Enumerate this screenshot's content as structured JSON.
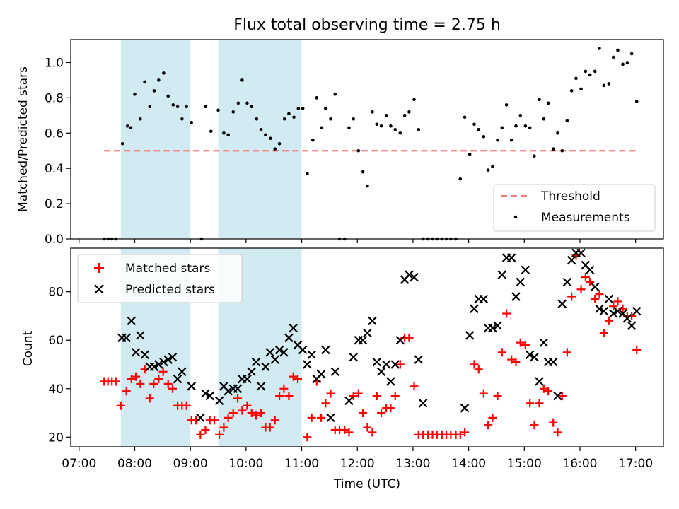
{
  "figure": {
    "title": "Flux total observing time = 2.75 h",
    "xlabel": "Time (UTC)",
    "x_ticks": [
      "07:00",
      "08:00",
      "09:00",
      "10:00",
      "11:00",
      "12:00",
      "13:00",
      "14:00",
      "15:00",
      "16:00",
      "17:00"
    ]
  },
  "chart_data": [
    {
      "type": "scatter",
      "title": "Flux total observing time = 2.75 h",
      "xlabel": "",
      "ylabel": "Matched/Predicted stars",
      "x_unit": "hours UTC",
      "xlim": [
        6.85,
        17.5
      ],
      "ylim": [
        0.0,
        1.13
      ],
      "y_ticks": [
        0.0,
        0.2,
        0.4,
        0.6,
        0.8,
        1.0
      ],
      "legend_position": "lower-right",
      "shaded_intervals": [
        [
          7.75,
          9.0
        ],
        [
          9.5,
          11.0
        ]
      ],
      "shade_color": "#add8e6",
      "threshold": {
        "name": "Threshold",
        "value": 0.5,
        "x_range": [
          7.45,
          17.0
        ],
        "color": "#f08080"
      },
      "series": [
        {
          "name": "Measurements",
          "color": "#000000",
          "x": [
            7.45,
            7.52,
            7.59,
            7.66,
            7.78,
            7.87,
            7.93,
            8.0,
            8.1,
            8.18,
            8.27,
            8.35,
            8.43,
            8.52,
            8.6,
            8.69,
            8.77,
            8.85,
            8.93,
            9.02,
            9.2,
            9.27,
            9.37,
            9.5,
            9.6,
            9.68,
            9.77,
            9.86,
            9.93,
            10.02,
            10.1,
            10.19,
            10.27,
            10.35,
            10.44,
            10.52,
            10.6,
            10.69,
            10.77,
            10.86,
            10.94,
            11.02,
            11.1,
            11.2,
            11.27,
            11.36,
            11.43,
            11.52,
            11.6,
            11.68,
            11.77,
            11.85,
            11.93,
            12.02,
            12.1,
            12.18,
            12.27,
            12.35,
            12.43,
            12.52,
            12.6,
            12.68,
            12.77,
            12.85,
            12.93,
            13.02,
            13.1,
            13.18,
            13.27,
            13.35,
            13.43,
            13.52,
            13.6,
            13.68,
            13.77,
            13.85,
            13.93,
            14.02,
            14.1,
            14.18,
            14.27,
            14.35,
            14.43,
            14.52,
            14.6,
            14.68,
            14.77,
            14.85,
            14.93,
            15.02,
            15.1,
            15.18,
            15.27,
            15.35,
            15.43,
            15.52,
            15.6,
            15.68,
            15.77,
            15.85,
            15.93,
            16.02,
            16.1,
            16.18,
            16.27,
            16.35,
            16.43,
            16.52,
            16.6,
            16.68,
            16.77,
            16.85,
            16.93,
            17.02
          ],
          "y": [
            0.0,
            0.0,
            0.0,
            0.0,
            0.54,
            0.64,
            0.63,
            0.82,
            0.68,
            0.89,
            0.75,
            0.84,
            0.9,
            0.94,
            0.81,
            0.76,
            0.75,
            0.68,
            0.75,
            0.66,
            0.0,
            0.75,
            0.61,
            0.73,
            0.6,
            0.59,
            0.72,
            0.77,
            0.9,
            0.77,
            0.75,
            0.68,
            0.62,
            0.59,
            0.57,
            0.51,
            0.54,
            0.68,
            0.71,
            0.69,
            0.74,
            0.74,
            0.37,
            0.56,
            0.8,
            0.63,
            0.74,
            0.68,
            0.82,
            0.0,
            0.0,
            0.63,
            0.68,
            0.5,
            0.38,
            0.3,
            0.72,
            0.65,
            0.64,
            0.7,
            0.64,
            0.62,
            0.6,
            0.7,
            0.72,
            0.79,
            0.62,
            0.0,
            0.0,
            0.0,
            0.0,
            0.0,
            0.0,
            0.0,
            0.0,
            0.34,
            0.69,
            0.48,
            0.65,
            0.62,
            0.58,
            0.39,
            0.41,
            0.56,
            0.63,
            0.76,
            0.56,
            0.64,
            0.7,
            0.64,
            0.63,
            0.47,
            0.79,
            0.68,
            0.77,
            0.51,
            0.6,
            0.5,
            0.67,
            0.84,
            0.91,
            0.85,
            0.95,
            0.93,
            0.95,
            1.08,
            0.87,
            0.88,
            1.03,
            1.07,
            0.99,
            1.0,
            1.05,
            0.78
          ]
        }
      ]
    },
    {
      "type": "scatter",
      "title": "",
      "xlabel": "Time (UTC)",
      "ylabel": "Count",
      "x_unit": "hours UTC",
      "xlim": [
        6.85,
        17.5
      ],
      "ylim": [
        16,
        98
      ],
      "y_ticks": [
        20,
        40,
        60,
        80
      ],
      "legend_position": "upper-left",
      "shaded_intervals": [
        [
          7.75,
          9.0
        ],
        [
          9.5,
          11.0
        ]
      ],
      "shade_color": "#add8e6",
      "series": [
        {
          "name": "Matched stars",
          "marker": "+",
          "color": "#ff0000",
          "x": [
            7.45,
            7.52,
            7.59,
            7.66,
            7.75,
            7.85,
            7.94,
            8.02,
            8.1,
            8.18,
            8.27,
            8.34,
            8.43,
            8.51,
            8.6,
            8.68,
            8.77,
            8.85,
            8.93,
            9.02,
            9.1,
            9.18,
            9.27,
            9.35,
            9.43,
            9.52,
            9.6,
            9.68,
            9.77,
            9.85,
            9.93,
            10.02,
            10.1,
            10.18,
            10.27,
            10.35,
            10.43,
            10.52,
            10.6,
            10.68,
            10.77,
            10.85,
            10.93,
            11.1,
            11.18,
            11.27,
            11.35,
            11.43,
            11.52,
            11.6,
            11.68,
            11.77,
            11.85,
            11.93,
            12.02,
            12.1,
            12.18,
            12.27,
            12.35,
            12.43,
            12.52,
            12.6,
            12.68,
            12.77,
            12.85,
            12.93,
            13.02,
            13.1,
            13.18,
            13.27,
            13.35,
            13.43,
            13.52,
            13.6,
            13.68,
            13.77,
            13.85,
            13.93,
            14.1,
            14.18,
            14.27,
            14.35,
            14.43,
            14.52,
            14.6,
            14.68,
            14.77,
            14.85,
            14.93,
            15.02,
            15.1,
            15.18,
            15.27,
            15.35,
            15.43,
            15.52,
            15.6,
            15.68,
            15.77,
            15.85,
            15.93,
            16.02,
            16.1,
            16.18,
            16.27,
            16.35,
            16.43,
            16.52,
            16.6,
            16.68,
            16.77,
            16.85,
            16.93,
            17.02
          ],
          "y": [
            43,
            43,
            43,
            43,
            33,
            39,
            44,
            45,
            42,
            48,
            36,
            42,
            44,
            47,
            42,
            40,
            33,
            33,
            33,
            27,
            27,
            21,
            23,
            27,
            27,
            21,
            24,
            28,
            30,
            36,
            31,
            33,
            30,
            29,
            30,
            24,
            24,
            27,
            37,
            40,
            37,
            45,
            44,
            20,
            28,
            43,
            28,
            34,
            38,
            23,
            23,
            23,
            22,
            37,
            38,
            30,
            24,
            22,
            37,
            30,
            32,
            32,
            37,
            50,
            61,
            61,
            41,
            21,
            21,
            21,
            21,
            21,
            21,
            21,
            21,
            21,
            21,
            22,
            50,
            48,
            38,
            25,
            28,
            37,
            55,
            71,
            52,
            51,
            59,
            58,
            34,
            25,
            34,
            40,
            39,
            26,
            22,
            37,
            55,
            78,
            95,
            81,
            86,
            84,
            77,
            79,
            63,
            68,
            74,
            76,
            73,
            70,
            70,
            56
          ]
        },
        {
          "name": "Predicted stars",
          "marker": "x",
          "color": "#000000",
          "x": [
            7.77,
            7.85,
            7.94,
            8.02,
            8.1,
            8.18,
            8.27,
            8.35,
            8.43,
            8.52,
            8.6,
            8.68,
            8.77,
            8.85,
            9.02,
            9.18,
            9.27,
            9.35,
            9.52,
            9.6,
            9.68,
            9.77,
            9.85,
            9.93,
            10.02,
            10.1,
            10.18,
            10.27,
            10.35,
            10.43,
            10.52,
            10.6,
            10.68,
            10.77,
            10.85,
            10.93,
            11.02,
            11.1,
            11.18,
            11.27,
            11.35,
            11.43,
            11.52,
            11.6,
            11.85,
            11.93,
            12.02,
            12.1,
            12.18,
            12.27,
            12.35,
            12.43,
            12.52,
            12.6,
            12.68,
            12.77,
            12.85,
            12.93,
            13.02,
            13.1,
            13.18,
            13.93,
            14.02,
            14.1,
            14.18,
            14.27,
            14.35,
            14.43,
            14.52,
            14.6,
            14.68,
            14.77,
            14.85,
            14.93,
            15.02,
            15.1,
            15.18,
            15.27,
            15.35,
            15.43,
            15.52,
            15.6,
            15.68,
            15.77,
            15.85,
            15.93,
            16.02,
            16.1,
            16.18,
            16.27,
            16.35,
            16.43,
            16.52,
            16.6,
            16.68,
            16.77,
            16.85,
            16.93,
            17.02
          ],
          "y": [
            61,
            61,
            68,
            55,
            62,
            54,
            49,
            49,
            50,
            51,
            52,
            53,
            44,
            47,
            41,
            28,
            38,
            37,
            35,
            41,
            39,
            40,
            40,
            44,
            44,
            47,
            51,
            41,
            49,
            55,
            52,
            56,
            55,
            61,
            65,
            58,
            56,
            50,
            54,
            44,
            46,
            56,
            28,
            47,
            35,
            53,
            60,
            60,
            63,
            68,
            51,
            47,
            50,
            43,
            50,
            60,
            85,
            87,
            86,
            52,
            34,
            32,
            62,
            73,
            77,
            77,
            65,
            65,
            66,
            87,
            94,
            94,
            78,
            84,
            89,
            54,
            53,
            43,
            59,
            51,
            51,
            37,
            75,
            84,
            93,
            96,
            96,
            91,
            89,
            82,
            73,
            72,
            77,
            71,
            72,
            71,
            69,
            66,
            72
          ]
        }
      ]
    }
  ]
}
